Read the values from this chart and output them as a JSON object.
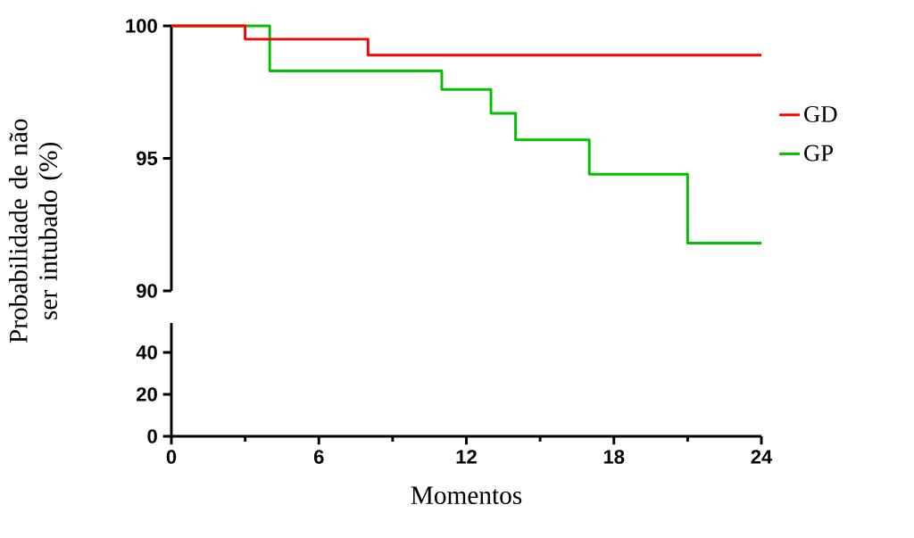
{
  "chart_data": [
    {
      "type": "step",
      "ylabel": "Probabilidade de não ser intubado (%)",
      "xlim": [
        0,
        24
      ],
      "ylim": [
        90,
        100
      ],
      "yticks": [
        90,
        95,
        100
      ],
      "tick_labels": "y",
      "legend": "right",
      "marker": "none",
      "series": [
        {
          "name": "GD",
          "color": "#ff0000",
          "x": [
            0,
            3,
            8,
            24
          ],
          "values": [
            100,
            99.5,
            98.9,
            98.9
          ]
        },
        {
          "name": "GP",
          "color": "#00c000",
          "x": [
            0,
            4,
            11,
            13,
            14,
            17,
            21,
            24
          ],
          "values": [
            100,
            98.3,
            97.6,
            96.7,
            95.7,
            94.4,
            91.8,
            91.8
          ]
        }
      ]
    },
    {
      "type": "step",
      "xlabel": "Momentos",
      "xlim": [
        0,
        24
      ],
      "ylim": [
        0,
        54
      ],
      "yticks": [
        0,
        20,
        40
      ],
      "xticks": [
        0,
        {
          "value": 3,
          "label": null
        },
        6,
        {
          "value": 9,
          "label": null
        },
        12,
        {
          "value": 15,
          "label": null
        },
        18,
        {
          "value": 21,
          "label": null
        },
        24
      ]
    }
  ]
}
